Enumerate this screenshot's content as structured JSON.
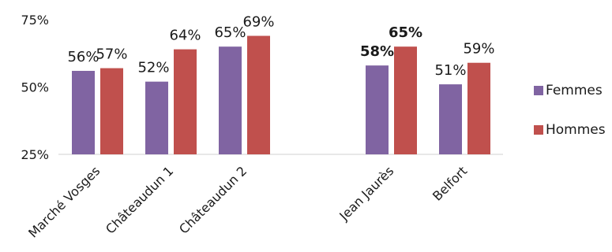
{
  "chart_data": {
    "type": "bar",
    "title": "",
    "xlabel": "",
    "ylabel": "",
    "ylim": [
      25,
      75
    ],
    "yticks": [
      25,
      50,
      75
    ],
    "ytick_labels": [
      "25%",
      "50%",
      "75%"
    ],
    "grid": false,
    "legend_position": "right",
    "categories": [
      "Marché Vosges",
      "Châteaudun 1",
      "Châteaudun 2",
      "",
      "Jean Jaurès",
      "Belfort"
    ],
    "series": [
      {
        "name": "Femmes",
        "color": "#8064a2",
        "values": [
          56,
          52,
          65,
          null,
          58,
          51
        ],
        "labels": [
          "56%",
          "52%",
          "65%",
          "",
          "58%",
          "51%"
        ],
        "bold": [
          false,
          false,
          false,
          false,
          true,
          false
        ]
      },
      {
        "name": "Hommes",
        "color": "#c0504d",
        "values": [
          57,
          64,
          69,
          null,
          65,
          59
        ],
        "labels": [
          "57%",
          "64%",
          "69%",
          "",
          "65%",
          "59%"
        ],
        "bold": [
          false,
          false,
          false,
          false,
          true,
          false
        ]
      }
    ]
  }
}
